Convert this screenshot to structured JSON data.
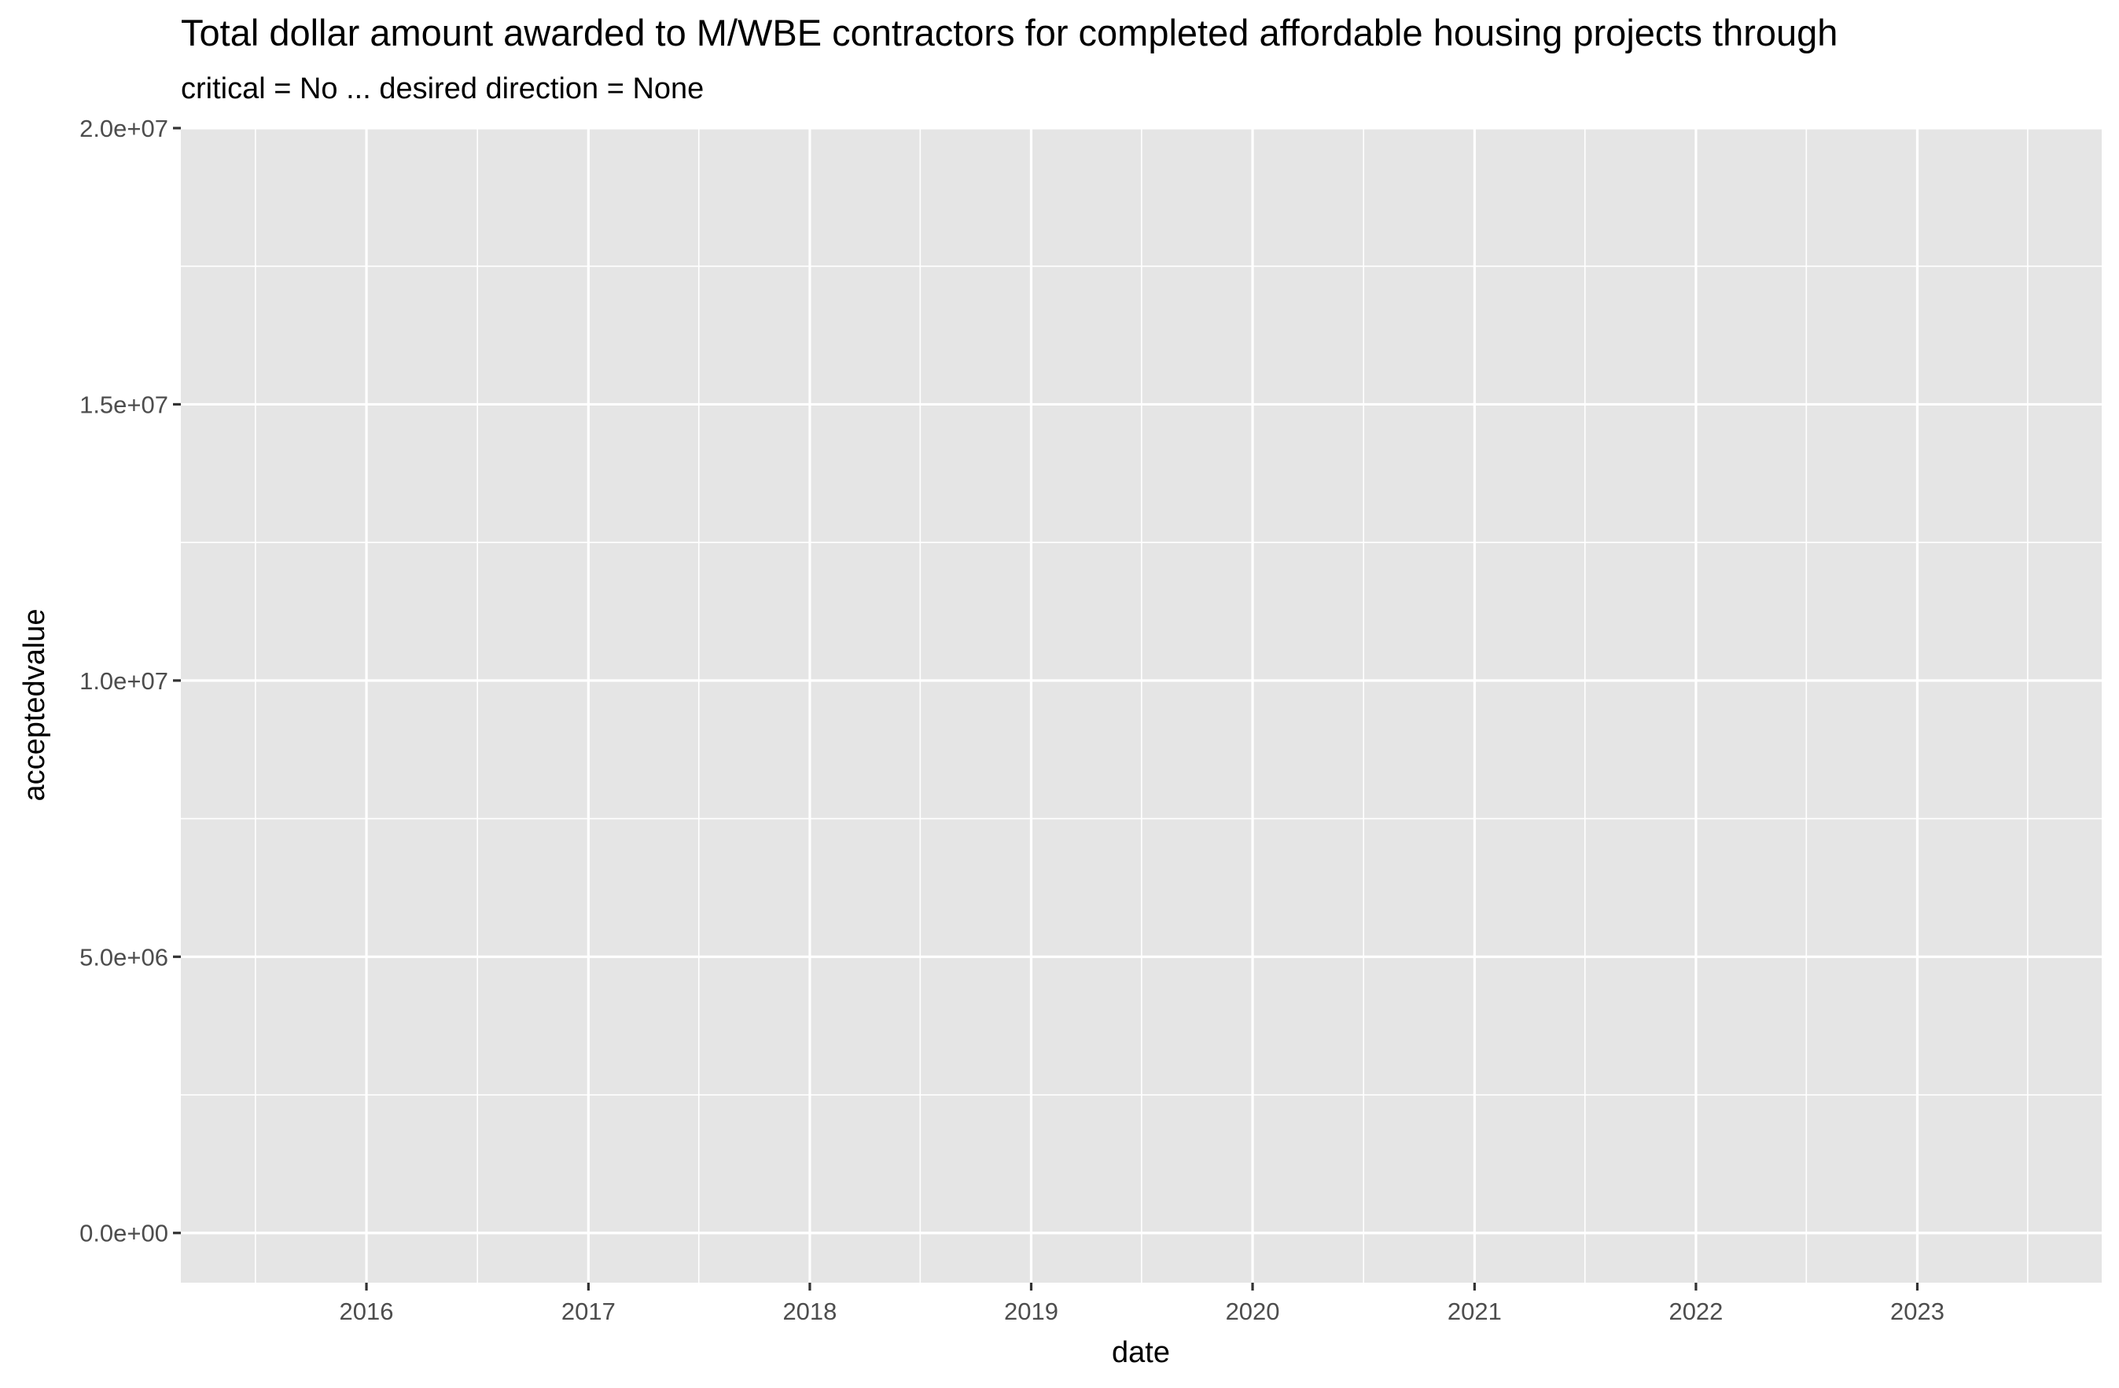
{
  "chart_data": {
    "type": "line",
    "title": "Total dollar amount awarded to M/WBE contractors for completed affordable housing projects through",
    "subtitle": "critical = No ... desired direction = None",
    "xlabel": "date",
    "ylabel": "acceptedvalue",
    "x_type": "date",
    "xlim": [
      "2015-03-01",
      "2023-11-01"
    ],
    "ylim": [
      -900000,
      20000000
    ],
    "x_ticks": [
      {
        "value": "2016-01-01",
        "label": "2016"
      },
      {
        "value": "2017-01-01",
        "label": "2017"
      },
      {
        "value": "2018-01-01",
        "label": "2018"
      },
      {
        "value": "2019-01-01",
        "label": "2019"
      },
      {
        "value": "2020-01-01",
        "label": "2020"
      },
      {
        "value": "2021-01-01",
        "label": "2021"
      },
      {
        "value": "2022-01-01",
        "label": "2022"
      },
      {
        "value": "2023-01-01",
        "label": "2023"
      }
    ],
    "x_minor_ticks": [
      "2015-07-02",
      "2016-07-02",
      "2017-07-02",
      "2018-07-02",
      "2019-07-02",
      "2020-07-02",
      "2021-07-02",
      "2022-07-02",
      "2023-07-02"
    ],
    "y_ticks": [
      {
        "value": 0,
        "label": "0.0e+00"
      },
      {
        "value": 5000000,
        "label": "5.0e+06"
      },
      {
        "value": 10000000,
        "label": "1.0e+07"
      },
      {
        "value": 15000000,
        "label": "1.5e+07"
      },
      {
        "value": 20000000,
        "label": "2.0e+07"
      }
    ],
    "y_minor_ticks": [
      2500000,
      7500000,
      12500000,
      17500000
    ],
    "series": [],
    "grid": true,
    "colors": {
      "panel_background": "#e5e5e5",
      "grid": "#ffffff",
      "tick_label": "#4d4d4d",
      "axis_tick": "#333333"
    }
  }
}
